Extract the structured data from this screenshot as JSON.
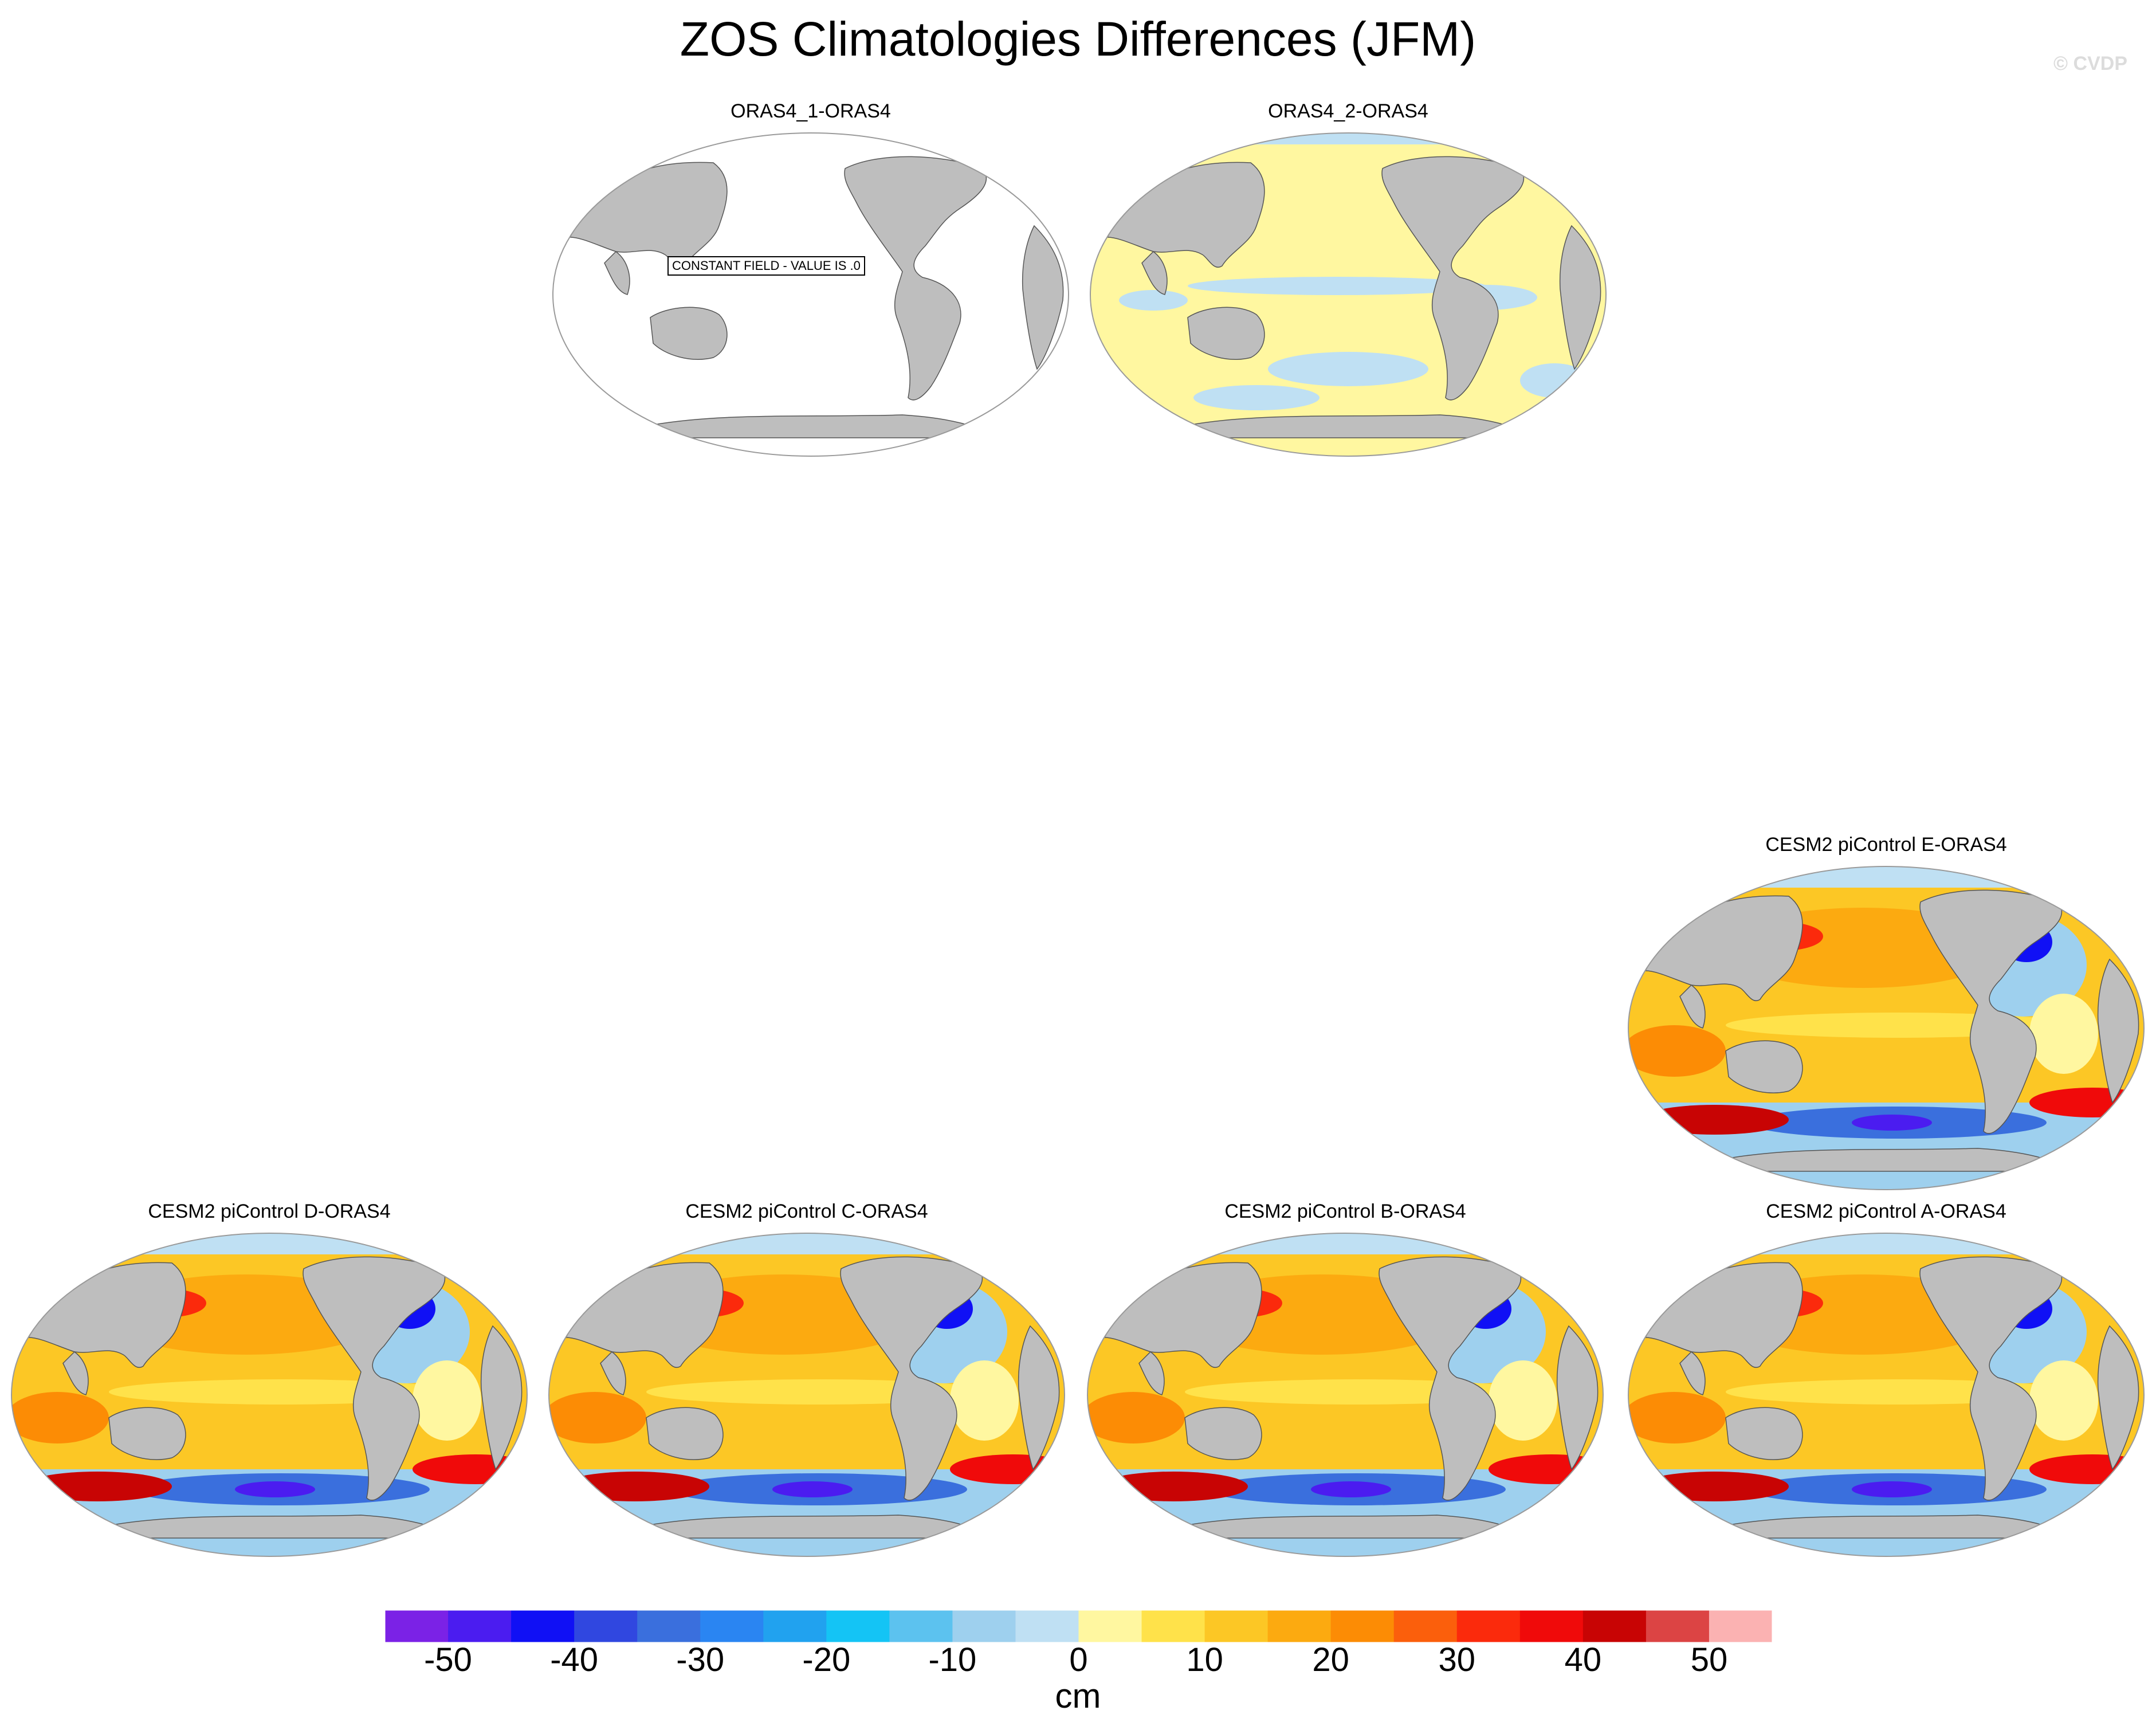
{
  "title": "ZOS Climatologies Differences (JFM)",
  "watermark": "© CVDP",
  "panels": [
    {
      "id": "p1",
      "label": "ORAS4_1-ORAS4",
      "pattern": "constant",
      "note": "CONSTANT FIELD - VALUE IS .0"
    },
    {
      "id": "p2",
      "label": "ORAS4_2-ORAS4",
      "pattern": "small"
    },
    {
      "id": "p3",
      "label": "CESM2 piControl E-ORAS4",
      "pattern": "model"
    },
    {
      "id": "p4",
      "label": "CESM2 piControl D-ORAS4",
      "pattern": "model"
    },
    {
      "id": "p5",
      "label": "CESM2 piControl C-ORAS4",
      "pattern": "model"
    },
    {
      "id": "p6",
      "label": "CESM2 piControl B-ORAS4",
      "pattern": "model"
    },
    {
      "id": "p7",
      "label": "CESM2 piControl A-ORAS4",
      "pattern": "model"
    }
  ],
  "colorbar": {
    "colors": [
      "#7b22e6",
      "#4b1cf0",
      "#1010f5",
      "#3047e0",
      "#3a6fdd",
      "#2a85f2",
      "#21a2ef",
      "#14c4f5",
      "#5cc2ef",
      "#9ed0ee",
      "#bfe0f3",
      "#fff7a0",
      "#ffe24a",
      "#fcc725",
      "#fcaa10",
      "#fc8c05",
      "#fb5f0c",
      "#fb2a0c",
      "#f00a0a",
      "#c80404",
      "#dc4444",
      "#fbb2b2"
    ],
    "tick_labels": [
      "-50",
      "-40",
      "-30",
      "-20",
      "-10",
      "0",
      "10",
      "20",
      "30",
      "40",
      "50"
    ],
    "units": "cm"
  },
  "land_color": "#bebebe"
}
